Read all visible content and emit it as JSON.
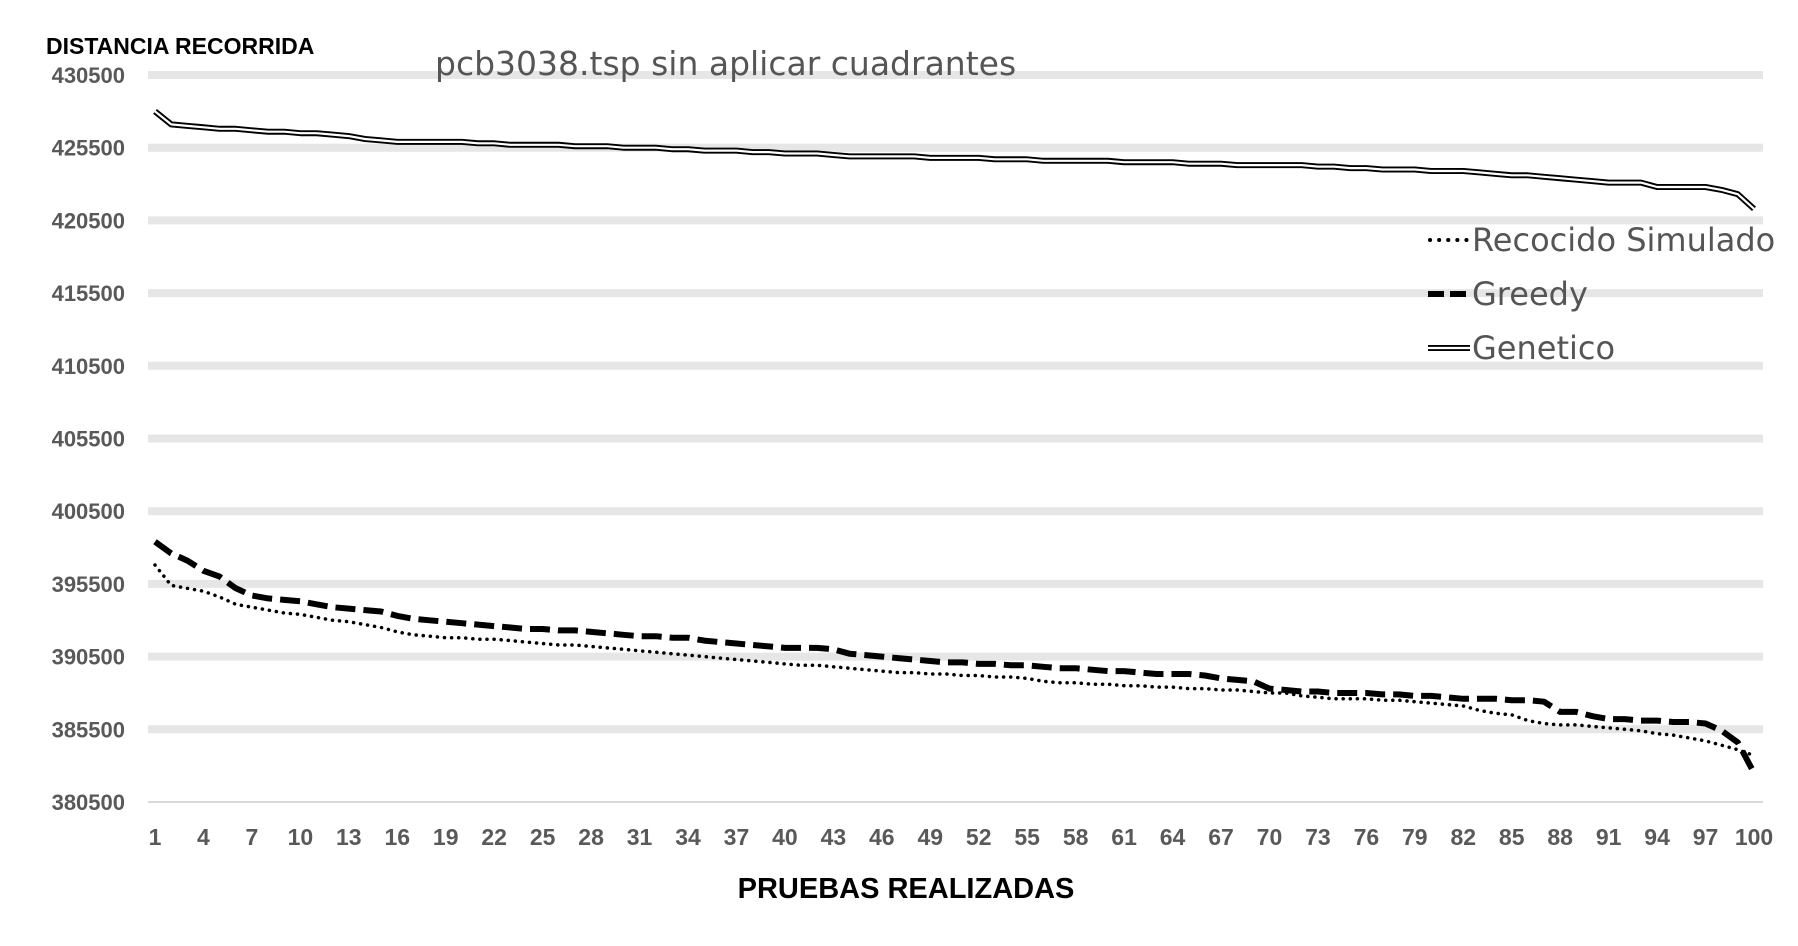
{
  "chart_data": {
    "type": "line",
    "title": "pcb3038.tsp sin aplicar cuadrantes",
    "ylabel": "DISTANCIA RECORRIDA",
    "xlabel": "PRUEBAS REALIZADAS",
    "ylim": [
      380500,
      430500
    ],
    "yticks": [
      380500,
      385500,
      390500,
      395500,
      400500,
      405500,
      410500,
      415500,
      420500,
      425500,
      430500
    ],
    "xlim": [
      1,
      100
    ],
    "xticks": [
      1,
      4,
      7,
      10,
      13,
      16,
      19,
      22,
      25,
      28,
      31,
      34,
      37,
      40,
      43,
      46,
      49,
      52,
      55,
      58,
      61,
      64,
      67,
      70,
      73,
      76,
      79,
      82,
      85,
      88,
      91,
      94,
      97,
      100
    ],
    "grid": true,
    "legend_position": "right",
    "series_colors": {
      "Recocido Simulado": "#000000",
      "Greedy": "#000000",
      "Genetico": "#000000"
    },
    "series": [
      {
        "name": "Recocido Simulado",
        "style": "dotted",
        "points": [
          [
            1,
            396800
          ],
          [
            2,
            395400
          ],
          [
            3,
            395200
          ],
          [
            4,
            395000
          ],
          [
            5,
            394600
          ],
          [
            6,
            394100
          ],
          [
            7,
            393900
          ],
          [
            8,
            393700
          ],
          [
            9,
            393500
          ],
          [
            10,
            393400
          ],
          [
            11,
            393200
          ],
          [
            12,
            393000
          ],
          [
            13,
            392900
          ],
          [
            14,
            392700
          ],
          [
            15,
            392500
          ],
          [
            16,
            392200
          ],
          [
            17,
            392000
          ],
          [
            18,
            391900
          ],
          [
            19,
            391800
          ],
          [
            20,
            391800
          ],
          [
            21,
            391700
          ],
          [
            22,
            391700
          ],
          [
            23,
            391600
          ],
          [
            24,
            391500
          ],
          [
            25,
            391400
          ],
          [
            26,
            391300
          ],
          [
            27,
            391300
          ],
          [
            28,
            391200
          ],
          [
            29,
            391100
          ],
          [
            30,
            391000
          ],
          [
            31,
            390900
          ],
          [
            32,
            390800
          ],
          [
            33,
            390700
          ],
          [
            34,
            390600
          ],
          [
            35,
            390500
          ],
          [
            36,
            390400
          ],
          [
            37,
            390300
          ],
          [
            38,
            390200
          ],
          [
            39,
            390100
          ],
          [
            40,
            390000
          ],
          [
            41,
            389900
          ],
          [
            42,
            389900
          ],
          [
            43,
            389800
          ],
          [
            44,
            389700
          ],
          [
            45,
            389600
          ],
          [
            46,
            389500
          ],
          [
            47,
            389400
          ],
          [
            48,
            389400
          ],
          [
            49,
            389300
          ],
          [
            50,
            389300
          ],
          [
            51,
            389200
          ],
          [
            52,
            389200
          ],
          [
            53,
            389100
          ],
          [
            54,
            389100
          ],
          [
            55,
            389000
          ],
          [
            56,
            388800
          ],
          [
            57,
            388700
          ],
          [
            58,
            388700
          ],
          [
            59,
            388600
          ],
          [
            60,
            388600
          ],
          [
            61,
            388500
          ],
          [
            62,
            388500
          ],
          [
            63,
            388400
          ],
          [
            64,
            388400
          ],
          [
            65,
            388300
          ],
          [
            66,
            388300
          ],
          [
            67,
            388200
          ],
          [
            68,
            388200
          ],
          [
            69,
            388100
          ],
          [
            70,
            388000
          ],
          [
            71,
            388000
          ],
          [
            72,
            387800
          ],
          [
            73,
            387700
          ],
          [
            74,
            387600
          ],
          [
            75,
            387600
          ],
          [
            76,
            387600
          ],
          [
            77,
            387500
          ],
          [
            78,
            387500
          ],
          [
            79,
            387400
          ],
          [
            80,
            387300
          ],
          [
            81,
            387200
          ],
          [
            82,
            387100
          ],
          [
            83,
            386800
          ],
          [
            84,
            386600
          ],
          [
            85,
            386500
          ],
          [
            86,
            386100
          ],
          [
            87,
            385900
          ],
          [
            88,
            385800
          ],
          [
            89,
            385800
          ],
          [
            90,
            385700
          ],
          [
            91,
            385600
          ],
          [
            92,
            385500
          ],
          [
            93,
            385400
          ],
          [
            94,
            385200
          ],
          [
            95,
            385100
          ],
          [
            96,
            384900
          ],
          [
            97,
            384700
          ],
          [
            98,
            384400
          ],
          [
            99,
            384100
          ],
          [
            100,
            383700
          ]
        ]
      },
      {
        "name": "Greedy",
        "style": "dashed",
        "points": [
          [
            1,
            398400
          ],
          [
            2,
            397600
          ],
          [
            3,
            397100
          ],
          [
            4,
            396400
          ],
          [
            5,
            396000
          ],
          [
            6,
            395200
          ],
          [
            7,
            394700
          ],
          [
            8,
            394500
          ],
          [
            9,
            394400
          ],
          [
            10,
            394300
          ],
          [
            11,
            394100
          ],
          [
            12,
            393900
          ],
          [
            13,
            393800
          ],
          [
            14,
            393700
          ],
          [
            15,
            393600
          ],
          [
            16,
            393300
          ],
          [
            17,
            393100
          ],
          [
            18,
            393000
          ],
          [
            19,
            392900
          ],
          [
            20,
            392800
          ],
          [
            21,
            392700
          ],
          [
            22,
            392600
          ],
          [
            23,
            392500
          ],
          [
            24,
            392400
          ],
          [
            25,
            392400
          ],
          [
            26,
            392300
          ],
          [
            27,
            392300
          ],
          [
            28,
            392200
          ],
          [
            29,
            392100
          ],
          [
            30,
            392000
          ],
          [
            31,
            391900
          ],
          [
            32,
            391900
          ],
          [
            33,
            391800
          ],
          [
            34,
            391800
          ],
          [
            35,
            391600
          ],
          [
            36,
            391500
          ],
          [
            37,
            391400
          ],
          [
            38,
            391300
          ],
          [
            39,
            391200
          ],
          [
            40,
            391100
          ],
          [
            41,
            391100
          ],
          [
            42,
            391100
          ],
          [
            43,
            391000
          ],
          [
            44,
            390700
          ],
          [
            45,
            390600
          ],
          [
            46,
            390500
          ],
          [
            47,
            390400
          ],
          [
            48,
            390300
          ],
          [
            49,
            390200
          ],
          [
            50,
            390100
          ],
          [
            51,
            390100
          ],
          [
            52,
            390000
          ],
          [
            53,
            390000
          ],
          [
            54,
            389900
          ],
          [
            55,
            389900
          ],
          [
            56,
            389800
          ],
          [
            57,
            389700
          ],
          [
            58,
            389700
          ],
          [
            59,
            389600
          ],
          [
            60,
            389500
          ],
          [
            61,
            389500
          ],
          [
            62,
            389400
          ],
          [
            63,
            389300
          ],
          [
            64,
            389300
          ],
          [
            65,
            389300
          ],
          [
            66,
            389200
          ],
          [
            67,
            389000
          ],
          [
            68,
            388900
          ],
          [
            69,
            388800
          ],
          [
            70,
            388300
          ],
          [
            71,
            388200
          ],
          [
            72,
            388100
          ],
          [
            73,
            388100
          ],
          [
            74,
            388000
          ],
          [
            75,
            388000
          ],
          [
            76,
            388000
          ],
          [
            77,
            387900
          ],
          [
            78,
            387900
          ],
          [
            79,
            387800
          ],
          [
            80,
            387800
          ],
          [
            81,
            387700
          ],
          [
            82,
            387600
          ],
          [
            83,
            387600
          ],
          [
            84,
            387600
          ],
          [
            85,
            387500
          ],
          [
            86,
            387500
          ],
          [
            87,
            387400
          ],
          [
            88,
            386700
          ],
          [
            89,
            386700
          ],
          [
            90,
            386400
          ],
          [
            91,
            386200
          ],
          [
            92,
            386200
          ],
          [
            93,
            386100
          ],
          [
            94,
            386100
          ],
          [
            95,
            386000
          ],
          [
            96,
            386000
          ],
          [
            97,
            385900
          ],
          [
            98,
            385400
          ],
          [
            99,
            384600
          ],
          [
            100,
            382500
          ]
        ]
      },
      {
        "name": "Genetico",
        "style": "double",
        "points": [
          [
            1,
            428000
          ],
          [
            2,
            427100
          ],
          [
            3,
            427000
          ],
          [
            4,
            426900
          ],
          [
            5,
            426800
          ],
          [
            6,
            426800
          ],
          [
            7,
            426700
          ],
          [
            8,
            426600
          ],
          [
            9,
            426600
          ],
          [
            10,
            426500
          ],
          [
            11,
            426500
          ],
          [
            12,
            426400
          ],
          [
            13,
            426300
          ],
          [
            14,
            426100
          ],
          [
            15,
            426000
          ],
          [
            16,
            425900
          ],
          [
            17,
            425900
          ],
          [
            18,
            425900
          ],
          [
            19,
            425900
          ],
          [
            20,
            425900
          ],
          [
            21,
            425800
          ],
          [
            22,
            425800
          ],
          [
            23,
            425700
          ],
          [
            24,
            425700
          ],
          [
            25,
            425700
          ],
          [
            26,
            425700
          ],
          [
            27,
            425600
          ],
          [
            28,
            425600
          ],
          [
            29,
            425600
          ],
          [
            30,
            425500
          ],
          [
            31,
            425500
          ],
          [
            32,
            425500
          ],
          [
            33,
            425400
          ],
          [
            34,
            425400
          ],
          [
            35,
            425300
          ],
          [
            36,
            425300
          ],
          [
            37,
            425300
          ],
          [
            38,
            425200
          ],
          [
            39,
            425200
          ],
          [
            40,
            425100
          ],
          [
            41,
            425100
          ],
          [
            42,
            425100
          ],
          [
            43,
            425000
          ],
          [
            44,
            424900
          ],
          [
            45,
            424900
          ],
          [
            46,
            424900
          ],
          [
            47,
            424900
          ],
          [
            48,
            424900
          ],
          [
            49,
            424800
          ],
          [
            50,
            424800
          ],
          [
            51,
            424800
          ],
          [
            52,
            424800
          ],
          [
            53,
            424700
          ],
          [
            54,
            424700
          ],
          [
            55,
            424700
          ],
          [
            56,
            424600
          ],
          [
            57,
            424600
          ],
          [
            58,
            424600
          ],
          [
            59,
            424600
          ],
          [
            60,
            424600
          ],
          [
            61,
            424500
          ],
          [
            62,
            424500
          ],
          [
            63,
            424500
          ],
          [
            64,
            424500
          ],
          [
            65,
            424400
          ],
          [
            66,
            424400
          ],
          [
            67,
            424400
          ],
          [
            68,
            424300
          ],
          [
            69,
            424300
          ],
          [
            70,
            424300
          ],
          [
            71,
            424300
          ],
          [
            72,
            424300
          ],
          [
            73,
            424200
          ],
          [
            74,
            424200
          ],
          [
            75,
            424100
          ],
          [
            76,
            424100
          ],
          [
            77,
            424000
          ],
          [
            78,
            424000
          ],
          [
            79,
            424000
          ],
          [
            80,
            423900
          ],
          [
            81,
            423900
          ],
          [
            82,
            423900
          ],
          [
            83,
            423800
          ],
          [
            84,
            423700
          ],
          [
            85,
            423600
          ],
          [
            86,
            423600
          ],
          [
            87,
            423500
          ],
          [
            88,
            423400
          ],
          [
            89,
            423300
          ],
          [
            90,
            423200
          ],
          [
            91,
            423100
          ],
          [
            92,
            423100
          ],
          [
            93,
            423100
          ],
          [
            94,
            422800
          ],
          [
            95,
            422800
          ],
          [
            96,
            422800
          ],
          [
            97,
            422800
          ],
          [
            98,
            422600
          ],
          [
            99,
            422300
          ],
          [
            100,
            421300
          ]
        ]
      }
    ]
  }
}
